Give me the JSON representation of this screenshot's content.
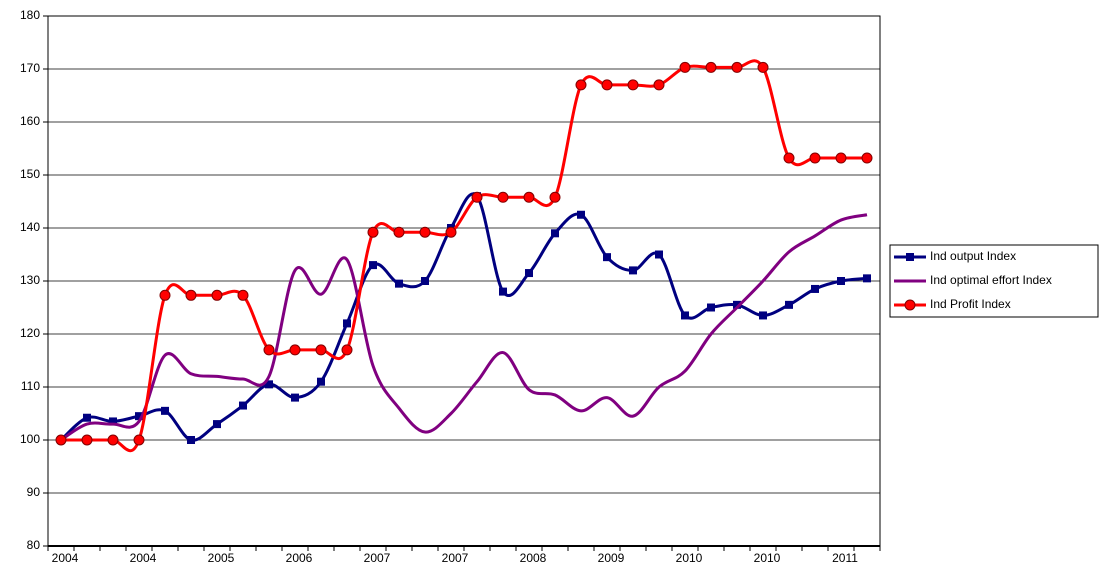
{
  "chart_data": {
    "type": "line",
    "categories": [
      "2004",
      null,
      null,
      "2004",
      null,
      null,
      "2005",
      null,
      null,
      "2006",
      null,
      null,
      "2007",
      null,
      null,
      "2007",
      null,
      null,
      "2008",
      null,
      null,
      "2009",
      null,
      null,
      "2010",
      null,
      null,
      "2010",
      null,
      null,
      "2011",
      null
    ],
    "series": [
      {
        "name": "Ind output Index",
        "color": "#000080",
        "marker": "square",
        "values": [
          100,
          104.2,
          103.5,
          104.5,
          105.5,
          100,
          103,
          106.5,
          110.5,
          108,
          111,
          122,
          133,
          129.5,
          130,
          140,
          146,
          128,
          131.5,
          139,
          142.5,
          134.5,
          132,
          135,
          123.5,
          125,
          125.5,
          123.5,
          125.5,
          128.5,
          130,
          130.5
        ]
      },
      {
        "name": "Ind optimal effort Index",
        "color": "#800080",
        "marker": "none",
        "values": [
          100,
          103,
          103,
          103.5,
          116,
          112.5,
          112,
          111.5,
          112,
          132,
          127.5,
          134,
          114,
          106,
          101.5,
          105,
          111,
          116.5,
          109.5,
          108.5,
          105.5,
          108,
          104.5,
          110,
          113,
          120,
          125,
          130,
          135.5,
          138.5,
          141.5,
          142.5
        ]
      },
      {
        "name": "Ind Profit Index",
        "color": "#ff0000",
        "marker": "circle",
        "values": [
          100,
          100,
          100,
          100,
          127.3,
          127.3,
          127.3,
          127.3,
          117,
          117,
          117,
          117,
          139.2,
          139.2,
          139.2,
          139.2,
          145.8,
          145.8,
          145.8,
          145.8,
          167,
          167,
          167,
          167,
          170.3,
          170.3,
          170.3,
          170.3,
          153.2,
          153.2,
          153.2,
          153.2
        ]
      }
    ],
    "ylim": [
      80,
      180
    ],
    "yticks": [
      80,
      90,
      100,
      110,
      120,
      130,
      140,
      150,
      160,
      170,
      180
    ],
    "grid": true,
    "smooth": true,
    "legend": "right"
  }
}
